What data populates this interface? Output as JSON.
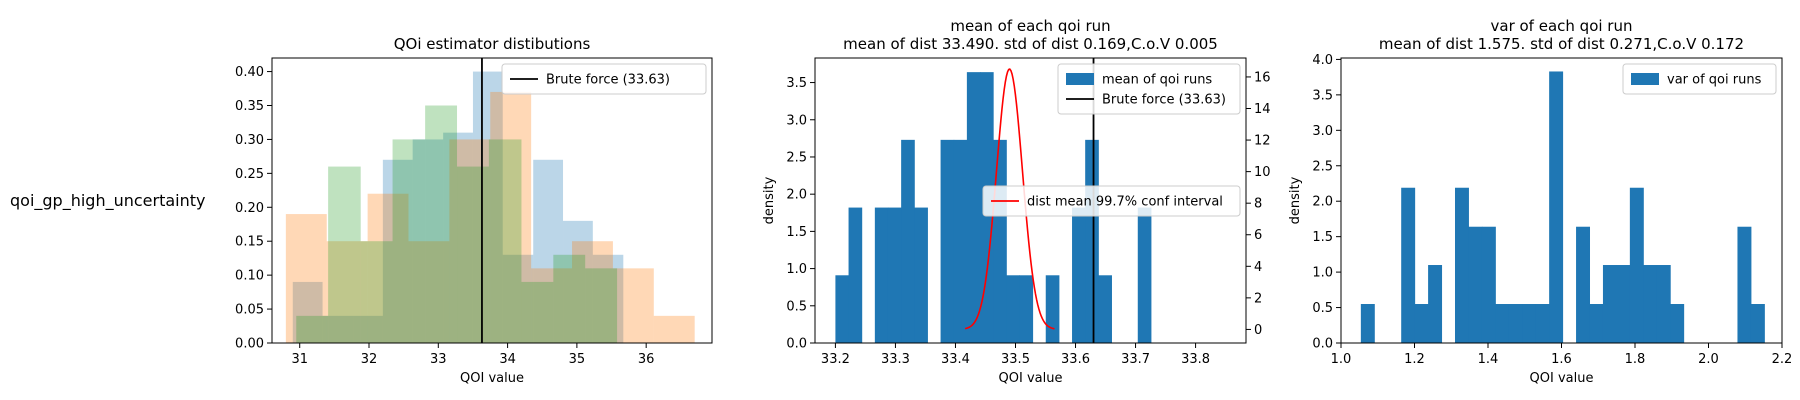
{
  "row_label": "qoi_gp_high_uncertainty",
  "chart_data": [
    {
      "type": "histogram",
      "title": "QOi estimator distibutions",
      "xlabel": "QOI value",
      "ylabel": "",
      "xlim": [
        30.6,
        36.95
      ],
      "ylim": [
        0,
        0.42
      ],
      "xticks": [
        31,
        32,
        33,
        34,
        35,
        36
      ],
      "yticks": [
        0.0,
        0.05,
        0.1,
        0.15,
        0.2,
        0.25,
        0.3,
        0.35,
        0.4
      ],
      "ytick_labels": [
        "0.00",
        "0.05",
        "0.10",
        "0.15",
        "0.20",
        "0.25",
        "0.30",
        "0.35",
        "0.40"
      ],
      "legend": {
        "position": "top-right",
        "entries": [
          "Brute force (33.63)"
        ]
      },
      "vlines": [
        {
          "x": 33.63,
          "color": "#000000",
          "label": "Brute force (33.63)"
        }
      ],
      "series": [
        {
          "color": "#1f77b4",
          "opacity": 0.3,
          "edges": [
            30.9,
            31.33,
            31.77,
            32.2,
            32.63,
            33.07,
            33.5,
            33.93,
            34.37,
            34.8,
            35.23,
            35.67
          ],
          "values": [
            0.09,
            0.04,
            0.04,
            0.27,
            0.3,
            0.31,
            0.4,
            0.13,
            0.27,
            0.18,
            0.13
          ]
        },
        {
          "color": "#ff7f0e",
          "opacity": 0.3,
          "edges": [
            30.8,
            31.39,
            31.98,
            32.57,
            33.16,
            33.75,
            34.34,
            34.93,
            35.52,
            36.11,
            36.7
          ],
          "values": [
            0.19,
            0.15,
            0.22,
            0.15,
            0.3,
            0.37,
            0.11,
            0.15,
            0.11,
            0.04
          ]
        },
        {
          "color": "#2ca02c",
          "opacity": 0.3,
          "edges": [
            30.95,
            31.41,
            31.88,
            32.34,
            32.81,
            33.27,
            33.73,
            34.2,
            34.66,
            35.12,
            35.58
          ],
          "values": [
            0.04,
            0.26,
            0.15,
            0.3,
            0.35,
            0.26,
            0.3,
            0.09,
            0.13,
            0.11
          ]
        }
      ]
    },
    {
      "type": "histogram",
      "title": "mean of each qoi run",
      "subtitle": "mean of dist 33.490. std of dist 0.169,C.o.V 0.005",
      "xlabel": "QOI value",
      "ylabel": "density",
      "xlim": [
        33.166,
        33.884
      ],
      "ylim": [
        0,
        3.83
      ],
      "xticks": [
        33.2,
        33.3,
        33.4,
        33.5,
        33.6,
        33.7,
        33.8
      ],
      "xtick_labels": [
        "33.2",
        "33.3",
        "33.4",
        "33.5",
        "33.6",
        "33.7",
        "33.8"
      ],
      "yticks": [
        0.0,
        0.5,
        1.0,
        1.5,
        2.0,
        2.5,
        3.0,
        3.5
      ],
      "ytick_labels": [
        "0.0",
        "0.5",
        "1.0",
        "1.5",
        "2.0",
        "2.5",
        "3.0",
        "3.5"
      ],
      "y2lim": [
        -0.86,
        17.2
      ],
      "y2ticks": [
        0,
        2,
        4,
        6,
        8,
        10,
        12,
        14,
        16
      ],
      "legend": {
        "position": "top-right",
        "entries": [
          "mean of qoi runs",
          "Brute force (33.63)"
        ]
      },
      "legend2": {
        "position": "center-right",
        "entries": [
          "dist mean 99.7% conf interval"
        ]
      },
      "bars": {
        "color": "#1f77b4",
        "label": "mean of qoi runs",
        "start": 33.2,
        "width": 0.0219,
        "values": [
          0.91,
          1.82,
          0,
          1.82,
          1.82,
          2.73,
          1.82,
          0,
          2.73,
          2.73,
          3.64,
          3.64,
          2.73,
          0.91,
          0.91,
          0,
          0.91,
          0,
          1.82,
          2.73,
          0.91,
          0,
          0,
          1.82
        ]
      },
      "vlines": [
        {
          "x": 33.63,
          "color": "#000000",
          "label": "Brute force (33.63)"
        }
      ],
      "curve": {
        "axis": "right",
        "color": "#ff0000",
        "label": "dist mean 99.7% conf interval",
        "mean": 33.49,
        "sd": 0.0217,
        "peak": 16.5,
        "xrange": [
          33.416,
          33.565
        ]
      }
    },
    {
      "type": "histogram",
      "title": "var of each qoi run",
      "subtitle": "mean of dist 1.575. std of dist 0.271,C.o.V 0.172",
      "xlabel": "QOI value",
      "ylabel": "density",
      "xlim": [
        1.0,
        2.2
      ],
      "ylim": [
        0,
        4.02
      ],
      "xticks": [
        1.0,
        1.2,
        1.4,
        1.6,
        1.8,
        2.0,
        2.2
      ],
      "xtick_labels": [
        "1.0",
        "1.2",
        "1.4",
        "1.6",
        "1.8",
        "2.0",
        "2.2"
      ],
      "yticks": [
        0.0,
        0.5,
        1.0,
        1.5,
        2.0,
        2.5,
        3.0,
        3.5,
        4.0
      ],
      "ytick_labels": [
        "0.0",
        "0.5",
        "1.0",
        "1.5",
        "2.0",
        "2.5",
        "3.0",
        "3.5",
        "4.0"
      ],
      "legend": {
        "position": "top-right",
        "entries": [
          "var of qoi runs"
        ]
      },
      "bars": {
        "color": "#1f77b4",
        "label": "var of qoi runs",
        "start": 1.054,
        "width": 0.0366,
        "values": [
          0.55,
          0,
          0,
          2.19,
          0.55,
          1.1,
          0,
          2.19,
          1.64,
          1.64,
          0.55,
          0.55,
          0.55,
          0.55,
          3.83,
          0,
          1.64,
          0.55,
          1.1,
          1.1,
          2.19,
          1.1,
          1.1,
          0.55,
          0,
          0,
          0,
          0,
          1.64,
          0.55
        ]
      }
    }
  ]
}
